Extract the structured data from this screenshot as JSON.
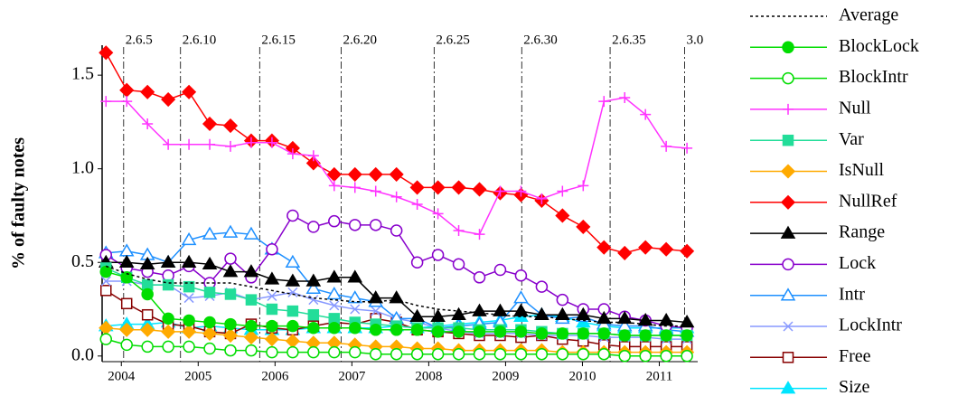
{
  "chart_data": {
    "type": "line",
    "y_label": "% of faulty notes",
    "x": [
      2003.8,
      2004.07,
      2004.34,
      2004.61,
      2004.88,
      2005.15,
      2005.42,
      2005.69,
      2005.96,
      2006.23,
      2006.5,
      2006.77,
      2007.04,
      2007.31,
      2007.58,
      2007.85,
      2008.12,
      2008.39,
      2008.66,
      2008.93,
      2009.2,
      2009.47,
      2009.74,
      2010.01,
      2010.28,
      2010.55,
      2010.82,
      2011.09,
      2011.36
    ],
    "xlim": [
      2003.75,
      2011.5
    ],
    "xticks": [
      2004,
      2005,
      2006,
      2007,
      2008,
      2009,
      2010,
      2011
    ],
    "ylim": [
      -0.03,
      1.66
    ],
    "yticks": [
      {
        "value": 0,
        "label": "0.0"
      },
      0.5,
      {
        "value": 1,
        "label": "1.0"
      },
      1.5
    ],
    "versions": [
      {
        "value": 2004.03,
        "label": "2.6.5"
      },
      {
        "value": 2004.77,
        "label": "2.6.10"
      },
      {
        "value": 2005.8,
        "label": "2.6.15"
      },
      {
        "value": 2006.86,
        "label": "2.6.20"
      },
      {
        "value": 2008.07,
        "label": "2.6.25"
      },
      {
        "value": 2009.21,
        "label": "2.6.30"
      },
      {
        "value": 2010.36,
        "label": "2.6.35"
      },
      {
        "value": 2011.33,
        "label": "3.0"
      }
    ],
    "series": [
      {
        "name": "Average",
        "color": "#000000",
        "dashed": true,
        "values": [
          0.48,
          0.44,
          0.41,
          0.39,
          0.39,
          0.39,
          0.39,
          0.37,
          0.35,
          0.33,
          0.31,
          0.3,
          0.29,
          0.29,
          0.3,
          0.27,
          0.25,
          0.24,
          0.23,
          0.22,
          0.21,
          0.21,
          0.2,
          0.19,
          0.18,
          0.18,
          0.17,
          0.16,
          0.16
        ]
      },
      {
        "name": "BlockLock",
        "color": "#00dd00",
        "marker": "circle",
        "filled": true,
        "values": [
          0.45,
          0.42,
          0.33,
          0.2,
          0.19,
          0.18,
          0.17,
          0.16,
          0.16,
          0.16,
          0.15,
          0.15,
          0.15,
          0.14,
          0.14,
          0.14,
          0.13,
          0.13,
          0.13,
          0.13,
          0.13,
          0.12,
          0.12,
          0.12,
          0.12,
          0.11,
          0.11,
          0.11,
          0.11
        ]
      },
      {
        "name": "BlockIntr",
        "color": "#00dd00",
        "marker": "circle",
        "filled": false,
        "values": [
          0.09,
          0.06,
          0.05,
          0.05,
          0.05,
          0.04,
          0.03,
          0.03,
          0.02,
          0.02,
          0.02,
          0.02,
          0.02,
          0.01,
          0.01,
          0.01,
          0.01,
          0.01,
          0.01,
          0.01,
          0.01,
          0.01,
          0.01,
          0.01,
          0.01,
          0,
          0,
          0,
          0
        ]
      },
      {
        "name": "Null",
        "color": "#ff33ff",
        "marker": "plus",
        "filled": false,
        "values": [
          1.36,
          1.36,
          1.24,
          1.13,
          1.13,
          1.13,
          1.12,
          1.14,
          1.14,
          1.08,
          1.07,
          0.91,
          0.9,
          0.88,
          0.85,
          0.81,
          0.76,
          0.67,
          0.65,
          0.88,
          0.88,
          0.84,
          0.88,
          0.91,
          1.36,
          1.38,
          1.29,
          1.12,
          1.11
        ]
      },
      {
        "name": "Var",
        "color": "#22dd99",
        "marker": "square",
        "filled": true,
        "values": [
          0.47,
          0.42,
          0.38,
          0.38,
          0.37,
          0.34,
          0.33,
          0.3,
          0.25,
          0.24,
          0.22,
          0.2,
          0.18,
          0.17,
          0.16,
          0.15,
          0.15,
          0.15,
          0.14,
          0.14,
          0.14,
          0.13,
          0.12,
          0.12,
          0.12,
          0.11,
          0.11,
          0.11,
          0.11
        ]
      },
      {
        "name": "IsNull",
        "color": "#ffaa00",
        "marker": "diamond",
        "filled": true,
        "values": [
          0.15,
          0.14,
          0.14,
          0.13,
          0.13,
          0.12,
          0.11,
          0.1,
          0.09,
          0.08,
          0.07,
          0.07,
          0.06,
          0.05,
          0.05,
          0.04,
          0.04,
          0.03,
          0.03,
          0.03,
          0.03,
          0.03,
          0.02,
          0.02,
          0.02,
          0.02,
          0.02,
          0.02,
          0.02
        ]
      },
      {
        "name": "NullRef",
        "color": "#ff0000",
        "marker": "diamond",
        "filled": true,
        "values": [
          1.62,
          1.42,
          1.41,
          1.37,
          1.41,
          1.24,
          1.23,
          1.15,
          1.15,
          1.11,
          1.03,
          0.97,
          0.97,
          0.97,
          0.97,
          0.9,
          0.9,
          0.9,
          0.89,
          0.87,
          0.86,
          0.83,
          0.75,
          0.69,
          0.58,
          0.55,
          0.58,
          0.57,
          0.56
        ]
      },
      {
        "name": "Range",
        "color": "#000000",
        "marker": "triangle",
        "filled": true,
        "values": [
          0.5,
          0.5,
          0.49,
          0.5,
          0.5,
          0.49,
          0.45,
          0.45,
          0.41,
          0.4,
          0.4,
          0.42,
          0.42,
          0.31,
          0.31,
          0.21,
          0.21,
          0.22,
          0.24,
          0.24,
          0.24,
          0.22,
          0.22,
          0.22,
          0.2,
          0.2,
          0.19,
          0.19,
          0.18
        ]
      },
      {
        "name": "Lock",
        "color": "#8800cc",
        "marker": "circle",
        "filled": false,
        "values": [
          0.54,
          0.47,
          0.45,
          0.43,
          0.48,
          0.39,
          0.52,
          0.42,
          0.57,
          0.75,
          0.69,
          0.72,
          0.7,
          0.7,
          0.67,
          0.5,
          0.54,
          0.49,
          0.42,
          0.46,
          0.43,
          0.37,
          0.3,
          0.25,
          0.25,
          0.21,
          0.19,
          0.16,
          0.15
        ]
      },
      {
        "name": "Intr",
        "color": "#1e90ff",
        "marker": "triangle",
        "filled": false,
        "values": [
          0.55,
          0.56,
          0.54,
          0.5,
          0.62,
          0.65,
          0.66,
          0.65,
          0.57,
          0.5,
          0.36,
          0.33,
          0.31,
          0.29,
          0.2,
          0.2,
          0.15,
          0.16,
          0.17,
          0.18,
          0.31,
          0.22,
          0.2,
          0.21,
          0.17,
          0.16,
          0.16,
          0.14,
          0.13
        ]
      },
      {
        "name": "LockIntr",
        "color": "#8899ff",
        "marker": "x",
        "filled": false,
        "values": [
          0.4,
          0.4,
          0.38,
          0.38,
          0.31,
          0.32,
          0.34,
          0.3,
          0.32,
          0.34,
          0.3,
          0.27,
          0.25,
          0.24,
          0.2,
          0.18,
          0.15,
          0.13,
          0.12,
          0.12,
          0.12,
          0.11,
          0.11,
          0.11,
          0.1,
          0.1,
          0.1,
          0.09,
          0.09
        ]
      },
      {
        "name": "Free",
        "color": "#880000",
        "marker": "square",
        "filled": false,
        "values": [
          0.35,
          0.28,
          0.22,
          0.17,
          0.16,
          0.13,
          0.12,
          0.17,
          0.15,
          0.14,
          0.16,
          0.18,
          0.17,
          0.2,
          0.18,
          0.14,
          0.13,
          0.12,
          0.11,
          0.11,
          0.1,
          0.11,
          0.09,
          0.08,
          0.06,
          0.05,
          0.05,
          0.05,
          0.05
        ]
      },
      {
        "name": "Size",
        "color": "#00e5ff",
        "marker": "triangle",
        "filled": true,
        "values": [
          0.16,
          0.17,
          0.17,
          0.18,
          0.15,
          0.16,
          0.15,
          0.14,
          0.14,
          0.14,
          0.15,
          0.15,
          0.15,
          0.15,
          0.16,
          0.15,
          0.16,
          0.17,
          0.18,
          0.19,
          0.21,
          0.22,
          0.21,
          0.18,
          0.16,
          0.15,
          0.15,
          0.15,
          0.15
        ]
      }
    ]
  }
}
